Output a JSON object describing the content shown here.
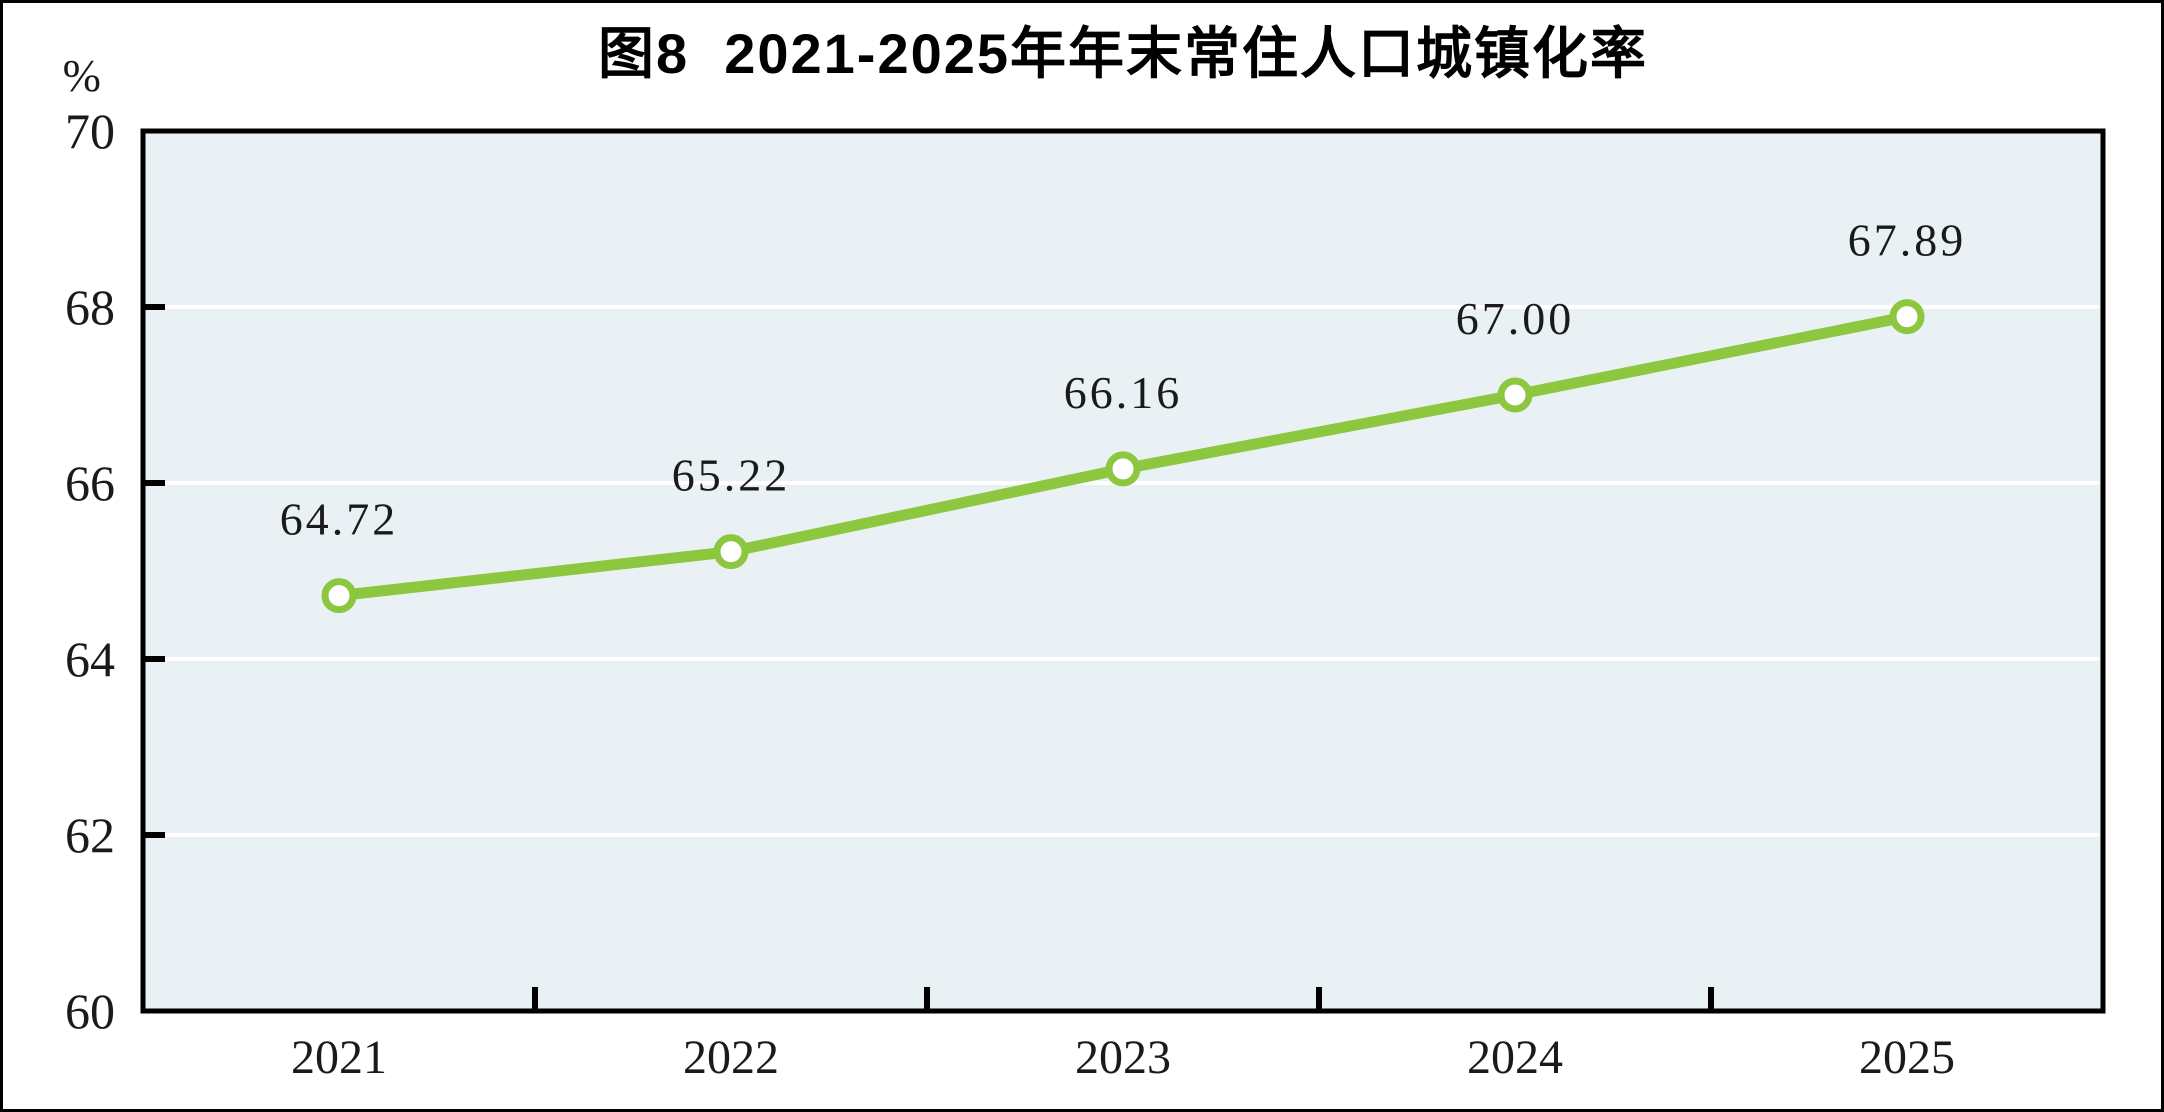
{
  "page": {
    "background": "#ffffff",
    "border_color": "#000000"
  },
  "chart_data": {
    "type": "line",
    "title": "图8  2021-2025年年末常住人口城镇化率",
    "unit_label": "%",
    "categories": [
      "2021",
      "2022",
      "2023",
      "2024",
      "2025"
    ],
    "values": [
      64.72,
      65.22,
      66.16,
      67.0,
      67.89
    ],
    "data_labels": [
      "64.72",
      "65.22",
      "66.16",
      "67.00",
      "67.89"
    ],
    "ylim": [
      60,
      70
    ],
    "yticks": [
      60,
      62,
      64,
      66,
      68,
      70
    ],
    "ytick_labels": [
      "60",
      "62",
      "64",
      "66",
      "68",
      "70"
    ],
    "grid": "horizontal-white-lines",
    "legend_position": "none",
    "line_color": "#8dc63f",
    "marker_fill": "#ffffff",
    "marker_ring_color": "#8dc63f",
    "plot_bg": "#e9f1f5",
    "grid_color": "#ffffff",
    "axis_color": "#000000",
    "text_color": "#1a1a1a"
  }
}
